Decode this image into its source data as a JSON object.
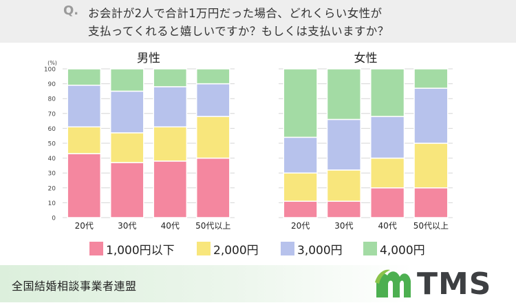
{
  "header": {
    "q_mark": "Q.",
    "question_line1": "お会計が2人で合計1万円だった場合、どれくらい女性が",
    "question_line2": "支払ってくれると嬉しいですか？もしくは支払いますか？"
  },
  "footer": {
    "organization": "全国結婚相談事業者連盟",
    "logo_text": "TMS",
    "logo_color": "#4caf50"
  },
  "colors": {
    "1000": "#f4879f",
    "2000": "#f8e67c",
    "3000": "#b7c2ec",
    "4000": "#a3dba4"
  },
  "chart_data": [
    {
      "type": "bar",
      "stacked": true,
      "title": "男性",
      "ylabel": "(%)",
      "ylim": [
        0,
        100
      ],
      "yticks": [
        0,
        10,
        20,
        30,
        40,
        50,
        60,
        70,
        80,
        90,
        100
      ],
      "categories": [
        "20代",
        "30代",
        "40代",
        "50代以上"
      ],
      "series": [
        {
          "name": "1,000円以下",
          "values": [
            43,
            37,
            38,
            40
          ]
        },
        {
          "name": "2,000円",
          "values": [
            18,
            20,
            23,
            28
          ]
        },
        {
          "name": "3,000円",
          "values": [
            28,
            28,
            27,
            22
          ]
        },
        {
          "name": "4,000円",
          "values": [
            11,
            15,
            12,
            10
          ]
        }
      ]
    },
    {
      "type": "bar",
      "stacked": true,
      "title": "女性",
      "ylim": [
        0,
        100
      ],
      "categories": [
        "20代",
        "30代",
        "40代",
        "50代以上"
      ],
      "series": [
        {
          "name": "1,000円以下",
          "values": [
            11,
            11,
            20,
            20
          ]
        },
        {
          "name": "2,000円",
          "values": [
            19,
            21,
            20,
            30
          ]
        },
        {
          "name": "3,000円",
          "values": [
            24,
            34,
            28,
            37
          ]
        },
        {
          "name": "4,000円",
          "values": [
            46,
            34,
            32,
            13
          ]
        }
      ]
    }
  ],
  "legend": [
    {
      "label": "1,000円以下",
      "color": "#f4879f"
    },
    {
      "label": "2,000円",
      "color": "#f8e67c"
    },
    {
      "label": "3,000円",
      "color": "#b7c2ec"
    },
    {
      "label": "4,000円",
      "color": "#a3dba4"
    }
  ]
}
